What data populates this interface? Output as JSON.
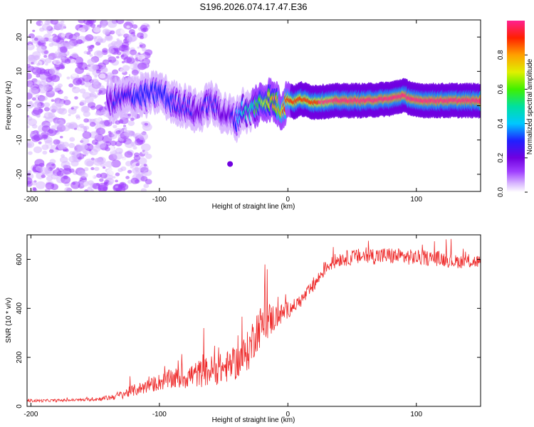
{
  "title": "S196.2026.074.17.47.E36",
  "chart_data": [
    {
      "type": "heatmap",
      "name": "spectrogram",
      "xlabel": "Height of straight line (km)",
      "ylabel": "Frequency (Hz)",
      "xlim": [
        -203,
        150
      ],
      "ylim": [
        -25,
        25
      ],
      "xticks": [
        -200,
        -100,
        0,
        100
      ],
      "yticks": [
        -20,
        -10,
        0,
        10,
        20
      ],
      "xtick_labels": [
        "-200",
        "-100",
        "0",
        "100"
      ],
      "ytick_labels": [
        "-20",
        "-10",
        "0",
        "10",
        "20"
      ],
      "ridge": {
        "description": "main spectral ridge (frequency vs height)",
        "x": [
          -140,
          -130,
          -120,
          -110,
          -100,
          -90,
          -80,
          -70,
          -60,
          -50,
          -45,
          -40,
          -35,
          -30,
          -25,
          -20,
          -15,
          -10,
          -5,
          0,
          5,
          10,
          20,
          40,
          60,
          80,
          90,
          100,
          120,
          150
        ],
        "y": [
          1,
          2,
          3,
          3,
          4,
          1,
          0,
          -2,
          1,
          -2,
          -3,
          -4,
          -1,
          -2,
          0,
          1,
          2,
          1,
          -1,
          2,
          1,
          2,
          1,
          1.5,
          1.5,
          2,
          3,
          1.5,
          1.5,
          1.5
        ],
        "peak_amplitude": [
          0.3,
          0.35,
          0.4,
          0.4,
          0.4,
          0.4,
          0.35,
          0.3,
          0.35,
          0.3,
          0.3,
          0.4,
          0.5,
          0.5,
          0.6,
          0.7,
          0.75,
          0.8,
          0.85,
          0.9,
          0.92,
          0.95,
          0.95,
          0.97,
          0.98,
          0.98,
          0.99,
          0.97,
          0.97,
          0.97
        ]
      },
      "blobs": [
        {
          "x": -45,
          "y": -17,
          "amp": 0.25
        }
      ]
    },
    {
      "type": "colorbar",
      "label": "Normalized spectral amplitude",
      "range": [
        0,
        1
      ],
      "ticks": [
        0.0,
        0.2,
        0.4,
        0.6,
        0.8
      ],
      "tick_labels": [
        "0.0",
        "0.2",
        "0.4",
        "0.6",
        "0.8"
      ],
      "colors": [
        "#ffffff",
        "#d9b8ff",
        "#a040ff",
        "#7000e0",
        "#2020ff",
        "#00c8ff",
        "#00e0a0",
        "#40f000",
        "#e0f000",
        "#ffa000",
        "#ff2000",
        "#ff2090"
      ]
    },
    {
      "type": "line",
      "name": "snr",
      "xlabel": "Height of straight line (km)",
      "ylabel": "SNR (10 * v/v)",
      "xlim": [
        -203,
        150
      ],
      "ylim": [
        0,
        700
      ],
      "xticks": [
        -200,
        -100,
        0,
        100
      ],
      "yticks": [
        0,
        200,
        400,
        600
      ],
      "xtick_labels": [
        "-200",
        "-100",
        "0",
        "100"
      ],
      "ytick_labels": [
        "0",
        "200",
        "400",
        "600"
      ],
      "color": "#ee2b2b",
      "series": [
        {
          "name": "SNR envelope",
          "x": [
            -203,
            -180,
            -160,
            -150,
            -140,
            -130,
            -120,
            -110,
            -100,
            -90,
            -80,
            -70,
            -60,
            -50,
            -40,
            -35,
            -30,
            -25,
            -20,
            -15,
            -10,
            -5,
            0,
            5,
            10,
            20,
            30,
            40,
            50,
            60,
            80,
            100,
            120,
            130,
            150
          ],
          "base": [
            20,
            22,
            24,
            26,
            30,
            40,
            55,
            70,
            85,
            95,
            100,
            110,
            120,
            130,
            150,
            170,
            200,
            270,
            300,
            320,
            340,
            360,
            380,
            400,
            420,
            480,
            560,
            590,
            595,
            600,
            600,
            595,
            590,
            580,
            580
          ],
          "noise": [
            8,
            8,
            8,
            10,
            15,
            25,
            35,
            40,
            50,
            60,
            70,
            80,
            90,
            90,
            100,
            110,
            120,
            130,
            120,
            110,
            80,
            60,
            50,
            40,
            40,
            40,
            40,
            45,
            45,
            50,
            50,
            45,
            45,
            40,
            40
          ]
        }
      ]
    }
  ]
}
